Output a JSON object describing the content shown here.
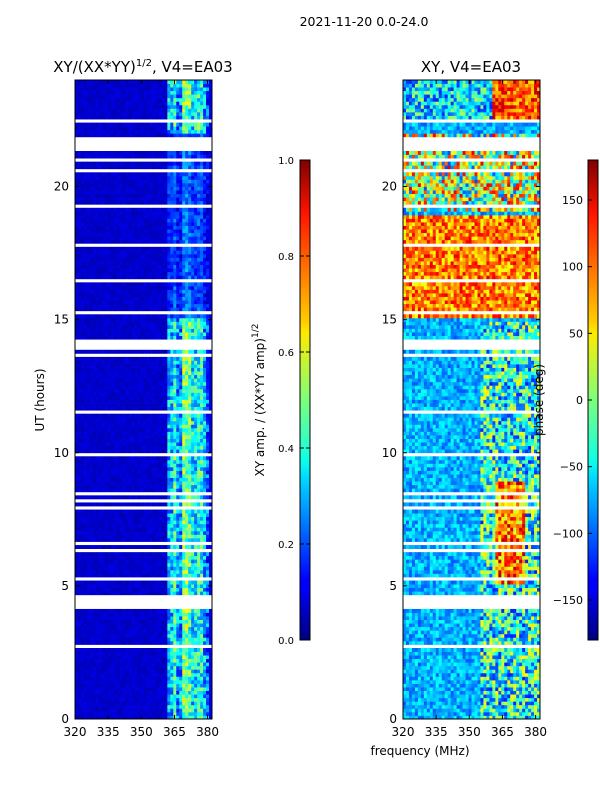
{
  "figure_title": "2021-11-20 0.0-24.0",
  "shared_xlabel": "frequency (MHz)",
  "chart_data": [
    {
      "type": "heatmap",
      "title_main": "XY/(XX*YY)",
      "title_exp": "1/2",
      "title_tail": ", V4=EA03",
      "xlabel": "",
      "ylabel": "UT (hours)",
      "xlim": [
        320,
        382
      ],
      "ylim": [
        0,
        24
      ],
      "xticks": [
        320,
        335,
        350,
        365,
        380
      ],
      "yticks": [
        0,
        5,
        10,
        15,
        20
      ],
      "colorbar": {
        "label_main": "XY amp. / (XX*YY amp)",
        "label_exp": "1/2",
        "range": [
          0.0,
          1.0
        ],
        "ticks": [
          "0.0",
          "0.2",
          "0.4",
          "0.6",
          "0.8",
          "1.0"
        ],
        "colormap": "jet"
      },
      "description_values": "mostly low amplitude (~0.05) below 362 MHz; high amplitude bands (0.3-0.7) between 362 and 380 MHz; white gaps = flagged time rows"
    },
    {
      "type": "heatmap",
      "title_main": "XY, V4=EA03",
      "xlabel": "frequency (MHz)",
      "ylabel": "",
      "xlim": [
        320,
        382
      ],
      "ylim": [
        0,
        24
      ],
      "xticks": [
        320,
        335,
        350,
        365,
        380
      ],
      "yticks": [
        0,
        5,
        10,
        15,
        20
      ],
      "colorbar": {
        "label": "phase (deg)",
        "range": [
          -180,
          180
        ],
        "ticks": [
          "−150",
          "−100",
          "−50",
          "0",
          "50",
          "100",
          "150"
        ],
        "tick_values": [
          -150,
          -100,
          -50,
          0,
          50,
          100,
          150
        ],
        "colormap": "jet"
      }
    }
  ],
  "colors": {
    "jet_dark_blue": "#00007f",
    "jet_dark_red": "#7f0000"
  }
}
